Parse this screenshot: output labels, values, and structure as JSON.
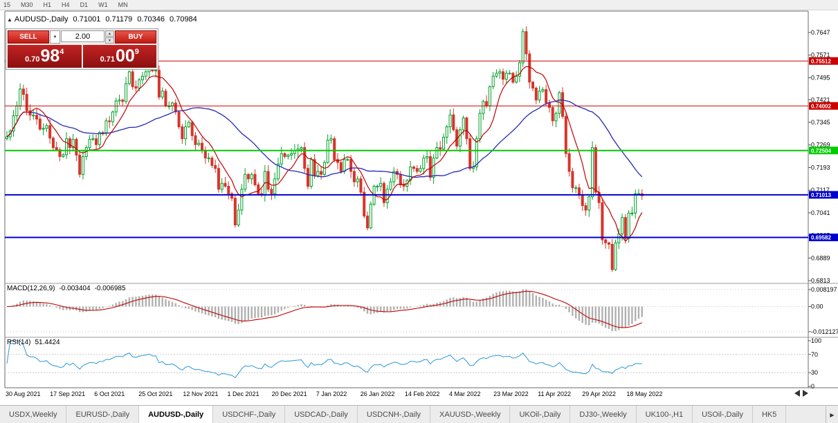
{
  "topbar": {
    "timeframes": [
      "15",
      "M30",
      "H1",
      "H4",
      "D1",
      "W1",
      "MN"
    ]
  },
  "chart": {
    "title": {
      "collapse_icon": "▲",
      "symbol": "AUDUSD-,Daily",
      "open": "0.71001",
      "high": "0.71179",
      "low": "0.70346",
      "close": "0.70984"
    },
    "trade_panel": {
      "sell_label": "SELL",
      "buy_label": "BUY",
      "lot_size": "2.00",
      "dropdown_icon": "▼",
      "spin_up_icon": "▲",
      "spin_down_icon": "▼",
      "sell_price_prefix": "0.70",
      "sell_price_big": "98",
      "sell_price_sup": "4",
      "buy_price_prefix": "0.71",
      "buy_price_big": "00",
      "buy_price_sup": "9"
    },
    "panes": {
      "macd": {
        "name": "MACD(12,26,9)",
        "value_main": "-0.003404",
        "value_signal": "-0.006985",
        "scale": [
          {
            "text": "0.008197",
            "value": 0.008197
          },
          {
            "text": "0.00",
            "value": 0
          },
          {
            "text": "-0.012127",
            "value": -0.012127
          }
        ]
      },
      "rsi": {
        "name": "RSI(14)",
        "value": "51.4424",
        "scale": [
          {
            "text": "100",
            "value": 100
          },
          {
            "text": "70",
            "value": 70
          },
          {
            "text": "30",
            "value": 30
          },
          {
            "text": "0",
            "value": 0
          }
        ],
        "levels": [
          70,
          30
        ]
      }
    }
  },
  "chart_data": {
    "type": "candlestick",
    "symbol": "AUDUSD",
    "timeframe": "Daily",
    "y_range": [
      0.6806,
      0.7719
    ],
    "first_open": 0.729,
    "closes": [
      0.7296,
      0.7316,
      0.7367,
      0.74,
      0.7457,
      0.7439,
      0.7384,
      0.7369,
      0.7369,
      0.7356,
      0.7322,
      0.7325,
      0.7334,
      0.7292,
      0.726,
      0.7253,
      0.723,
      0.7236,
      0.729,
      0.726,
      0.7288,
      0.7235,
      0.717,
      0.723,
      0.726,
      0.7288,
      0.729,
      0.727,
      0.7311,
      0.731,
      0.735,
      0.7347,
      0.738,
      0.7417,
      0.742,
      0.7415,
      0.7475,
      0.7515,
      0.7465,
      0.746,
      0.7488,
      0.75,
      0.7515,
      0.754,
      0.7518,
      0.752,
      0.743,
      0.745,
      0.74,
      0.74,
      0.741,
      0.738,
      0.733,
      0.729,
      0.733,
      0.7345,
      0.73,
      0.727,
      0.7275,
      0.725,
      0.7225,
      0.7225,
      0.72,
      0.719,
      0.712,
      0.714,
      0.713,
      0.7105,
      0.709,
      0.7,
      0.705,
      0.712,
      0.717,
      0.7155,
      0.717,
      0.7135,
      0.7105,
      0.71,
      0.718,
      0.712,
      0.7105,
      0.7155,
      0.7205,
      0.724,
      0.723,
      0.7235,
      0.724,
      0.725,
      0.7255,
      0.726,
      0.719,
      0.713,
      0.722,
      0.7165,
      0.718,
      0.717,
      0.721,
      0.7285,
      0.729,
      0.722,
      0.721,
      0.718,
      0.722,
      0.722,
      0.718,
      0.7145,
      0.7155,
      0.711,
      0.703,
      0.699,
      0.707,
      0.713,
      0.713,
      0.714,
      0.7075,
      0.712,
      0.7145,
      0.718,
      0.717,
      0.7135,
      0.713,
      0.715,
      0.7195,
      0.719,
      0.718,
      0.719,
      0.7225,
      0.723,
      0.716,
      0.7225,
      0.726,
      0.7255,
      0.7295,
      0.733,
      0.737,
      0.732,
      0.7265,
      0.732,
      0.736,
      0.729,
      0.719,
      0.7195,
      0.729,
      0.7375,
      0.7415,
      0.74,
      0.7465,
      0.75,
      0.751,
      0.7515,
      0.749,
      0.751,
      0.751,
      0.748,
      0.75,
      0.7545,
      0.765,
      0.7575,
      0.748,
      0.746,
      0.742,
      0.745,
      0.7455,
      0.741,
      0.7395,
      0.735,
      0.7375,
      0.7445,
      0.7365,
      0.724,
      0.718,
      0.7125,
      0.7125,
      0.71,
      0.7065,
      0.705,
      0.7095,
      0.726,
      0.711,
      0.7075,
      0.695,
      0.694,
      0.6935,
      0.685,
      0.694,
      0.697,
      0.7025,
      0.6955,
      0.704,
      0.704,
      0.7105,
      0.7105,
      0.70984
    ],
    "date_labels": [
      "30 Aug 2021",
      "17 Sep 2021",
      "6 Oct 2021",
      "25 Oct 2021",
      "12 Nov 2021",
      "1 Dec 2021",
      "20 Dec 2021",
      "7 Jan 2022",
      "26 Jan 2022",
      "14 Feb 2022",
      "4 Mar 2022",
      "23 Mar 2022",
      "11 Apr 2022",
      "29 Apr 2022",
      "18 May 2022"
    ],
    "price_axis_ticks": [
      {
        "text": "0.7647",
        "value": 0.7647
      },
      {
        "text": "0.7571",
        "value": 0.7571
      },
      {
        "text": "0.7495",
        "value": 0.7495
      },
      {
        "text": "0.7421",
        "value": 0.7421
      },
      {
        "text": "0.7345",
        "value": 0.7345
      },
      {
        "text": "0.7269",
        "value": 0.7269
      },
      {
        "text": "0.7193",
        "value": 0.7193
      },
      {
        "text": "0.7117",
        "value": 0.7117
      },
      {
        "text": "0.7041",
        "value": 0.7041
      },
      {
        "text": "0.6965",
        "value": 0.6965
      },
      {
        "text": "0.6889",
        "value": 0.6889
      },
      {
        "text": "0.6813",
        "value": 0.6813
      }
    ],
    "hlines": [
      {
        "label": "0.75512",
        "value": 0.75512,
        "color": "#cc0000",
        "stroke": 1
      },
      {
        "label": "0.74002",
        "value": 0.74002,
        "color": "#cc0000",
        "stroke": 1
      },
      {
        "label": "0.72504",
        "value": 0.72504,
        "color": "#00cc00",
        "stroke": 2
      },
      {
        "label": "0.71013",
        "value": 0.71013,
        "color": "#0000cc",
        "stroke": 2
      },
      {
        "label": "0.69582",
        "value": 0.69582,
        "color": "#0000cc",
        "stroke": 2
      }
    ],
    "indicators": {
      "ma_fast_period": 8,
      "ma_slow_period": 34,
      "macd": {
        "fast": 12,
        "slow": 26,
        "signal": 9,
        "scale_top": 0.0095,
        "scale_bottom": -0.0135
      },
      "rsi": {
        "period": 14,
        "levels": [
          70,
          30
        ]
      }
    },
    "colors": {
      "up": "#00a02a",
      "down": "#d8342a",
      "ma_fast": "#c00000",
      "ma_slow": "#2228b8",
      "macd_hist": "#b0b0b0",
      "macd_signal": "#c00000",
      "rsi_line": "#3aa0dc",
      "level_dash": "#c8c8c8",
      "frame": "#6a6a6a",
      "axis_text": "#000000"
    }
  },
  "tabs": {
    "items": [
      {
        "label": "USDX,Weekly",
        "active": false
      },
      {
        "label": "EURUSD-,Daily",
        "active": false
      },
      {
        "label": "AUDUSD-,Daily",
        "active": true
      },
      {
        "label": "USDCHF-,Daily",
        "active": false
      },
      {
        "label": "USDCAD-,Daily",
        "active": false
      },
      {
        "label": "USDCNH-,Daily",
        "active": false
      },
      {
        "label": "XAUUSD-,Weekly",
        "active": false
      },
      {
        "label": "UKOil-,Daily",
        "active": false
      },
      {
        "label": "DJ30-,Weekly",
        "active": false
      },
      {
        "label": "UK100-,H1",
        "active": false
      },
      {
        "label": "USOil-,Daily",
        "active": false
      },
      {
        "label": "HK5",
        "active": false
      }
    ],
    "scroll_right_icon": "▶",
    "scroll_left_icon": "◀"
  }
}
